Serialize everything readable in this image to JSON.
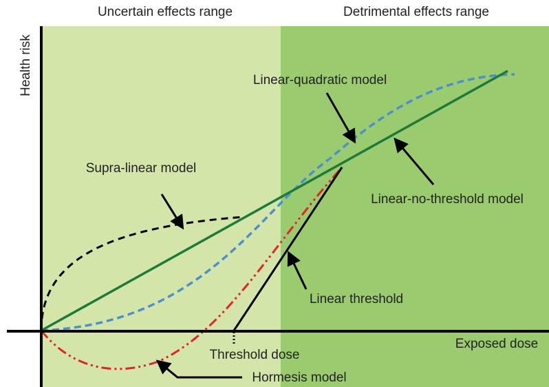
{
  "regions": {
    "left": "Uncertain effects range",
    "right": "Detrimental effects range"
  },
  "axes": {
    "y": "Health risk",
    "x": "Exposed dose"
  },
  "labels": {
    "linear_quadratic": "Linear-quadratic model",
    "supra_linear": "Supra-linear model",
    "lnt": "Linear-no-threshold model",
    "linear_threshold": "Linear threshold",
    "threshold_dose": "Threshold dose",
    "hormesis": "Hormesis model"
  }
}
